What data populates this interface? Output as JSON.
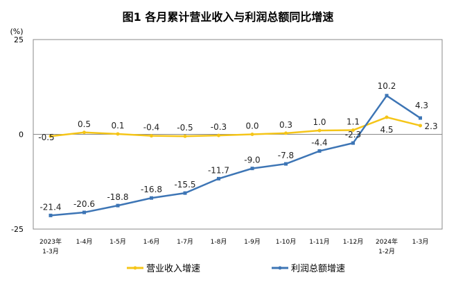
{
  "chart_data": {
    "type": "line",
    "title": "图1  各月累计营业收入与利润总额同比增速",
    "ylabel": "(%)",
    "ylim": [
      -25,
      25
    ],
    "yticks": [
      "25",
      "0",
      "-25"
    ],
    "categories": [
      [
        "2023年",
        "1-3月"
      ],
      [
        "1-4月"
      ],
      [
        "1-5月"
      ],
      [
        "1-6月"
      ],
      [
        "1-7月"
      ],
      [
        "1-8月"
      ],
      [
        "1-9月"
      ],
      [
        "1-10月"
      ],
      [
        "1-11月"
      ],
      [
        "1-12月"
      ],
      [
        "2024年",
        "1-2月"
      ],
      [
        "1-3月"
      ]
    ],
    "series": [
      {
        "name": "营业收入增速",
        "color": "#F5C518",
        "values": [
          -0.5,
          0.5,
          0.1,
          -0.4,
          -0.5,
          -0.3,
          0.0,
          0.3,
          1.0,
          1.1,
          4.5,
          2.3
        ],
        "labels": [
          "-0.5",
          "0.5",
          "0.1",
          "-0.4",
          "-0.5",
          "-0.3",
          "0.0",
          "0.3",
          "1.0",
          "1.1",
          "4.5",
          "2.3"
        ]
      },
      {
        "name": "利润总额增速",
        "color": "#3D75B5",
        "values": [
          -21.4,
          -20.6,
          -18.8,
          -16.8,
          -15.5,
          -11.7,
          -9.0,
          -7.8,
          -4.4,
          -2.3,
          10.2,
          4.3
        ],
        "labels": [
          "-21.4",
          "-20.6",
          "-18.8",
          "-16.8",
          "-15.5",
          "-11.7",
          "-9.0",
          "-7.8",
          "-4.4",
          "-2.3",
          "10.2",
          "4.3"
        ]
      }
    ],
    "legend": "bottom",
    "grid": false
  }
}
